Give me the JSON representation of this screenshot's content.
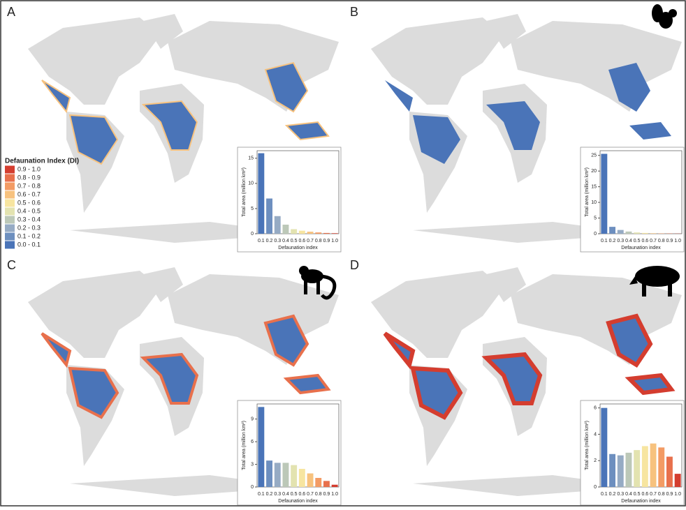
{
  "legend": {
    "title": "Defaunation Index (DI)",
    "items": [
      {
        "label": "0.9 - 1.0",
        "color": "#d43d2f"
      },
      {
        "label": "0.8 - 0.9",
        "color": "#e8704c"
      },
      {
        "label": "0.7 - 0.8",
        "color": "#f39b64"
      },
      {
        "label": "0.6 - 0.7",
        "color": "#f7c27e"
      },
      {
        "label": "0.5 - 0.6",
        "color": "#f7e5a0"
      },
      {
        "label": "0.4 - 0.5",
        "color": "#e3e3b0"
      },
      {
        "label": "0.3 - 0.4",
        "color": "#bcc8b8"
      },
      {
        "label": "0.2 - 0.3",
        "color": "#96abc4"
      },
      {
        "label": "0.1 - 0.2",
        "color": "#6d8fbf"
      },
      {
        "label": "0.0 - 0.1",
        "color": "#4a74b8"
      }
    ]
  },
  "chart_data": [
    {
      "type": "bar",
      "panel": "A",
      "xlabel": "Defaunation index",
      "ylabel": "Total area (million km²)",
      "categories": [
        "0.1",
        "0.2",
        "0.3",
        "0.4",
        "0.5",
        "0.6",
        "0.7",
        "0.8",
        "0.9",
        "1.0"
      ],
      "values": [
        16,
        7,
        3.5,
        1.8,
        0.9,
        0.6,
        0.4,
        0.25,
        0.15,
        0.1
      ],
      "colors": [
        "#4a74b8",
        "#6d8fbf",
        "#96abc4",
        "#bcc8b8",
        "#e3e3b0",
        "#f7e5a0",
        "#f7c27e",
        "#f39b64",
        "#e8704c",
        "#d43d2f"
      ],
      "ylim": [
        0,
        16.5
      ],
      "yticks": [
        0,
        5,
        10,
        15
      ]
    },
    {
      "type": "bar",
      "panel": "B",
      "xlabel": "Defaunation index",
      "ylabel": "Total area (million km²)",
      "categories": [
        "0.1",
        "0.2",
        "0.3",
        "0.4",
        "0.5",
        "0.6",
        "0.7",
        "0.8",
        "0.9",
        "1.0"
      ],
      "values": [
        25.5,
        2.2,
        1.2,
        0.7,
        0.4,
        0.25,
        0.15,
        0.1,
        0.08,
        0.05
      ],
      "colors": [
        "#4a74b8",
        "#6d8fbf",
        "#96abc4",
        "#bcc8b8",
        "#e3e3b0",
        "#f7e5a0",
        "#f7c27e",
        "#f39b64",
        "#e8704c",
        "#d43d2f"
      ],
      "ylim": [
        0,
        26.5
      ],
      "yticks": [
        0,
        5,
        10,
        15,
        20,
        25
      ]
    },
    {
      "type": "bar",
      "panel": "C",
      "xlabel": "Defaunation index",
      "ylabel": "Total area (million km²)",
      "categories": [
        "0.1",
        "0.2",
        "0.3",
        "0.4",
        "0.5",
        "0.6",
        "0.7",
        "0.8",
        "0.9",
        "1.0"
      ],
      "values": [
        10.6,
        3.5,
        3.2,
        3.2,
        2.9,
        2.4,
        1.8,
        1.2,
        0.8,
        0.3
      ],
      "colors": [
        "#4a74b8",
        "#6d8fbf",
        "#96abc4",
        "#bcc8b8",
        "#e3e3b0",
        "#f7e5a0",
        "#f7c27e",
        "#f39b64",
        "#e8704c",
        "#d43d2f"
      ],
      "ylim": [
        0,
        11
      ],
      "yticks": [
        0,
        3,
        6,
        9
      ]
    },
    {
      "type": "bar",
      "panel": "D",
      "xlabel": "Defaunation index",
      "ylabel": "Total area (million km²)",
      "categories": [
        "0.1",
        "0.2",
        "0.3",
        "0.4",
        "0.5",
        "0.6",
        "0.7",
        "0.8",
        "0.9",
        "1.0"
      ],
      "values": [
        6.0,
        2.5,
        2.4,
        2.6,
        2.8,
        3.1,
        3.3,
        3.0,
        2.3,
        1.0
      ],
      "colors": [
        "#4a74b8",
        "#6d8fbf",
        "#96abc4",
        "#bcc8b8",
        "#e3e3b0",
        "#f7e5a0",
        "#f7c27e",
        "#f39b64",
        "#e8704c",
        "#d43d2f"
      ],
      "ylim": [
        0,
        6.3
      ],
      "yticks": [
        0,
        2,
        4,
        6
      ]
    }
  ]
}
